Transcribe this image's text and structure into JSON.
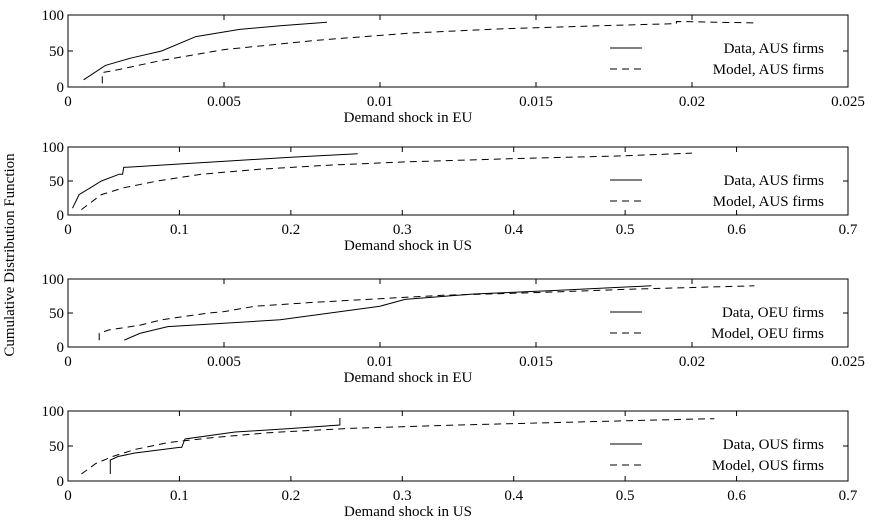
{
  "figure": {
    "shared_ylabel": "Cumulative Distribution Function"
  },
  "chart_data": [
    {
      "type": "line",
      "xlabel": "Demand shock in EU",
      "ylabel": "",
      "xlim": [
        0,
        0.025
      ],
      "ylim": [
        0,
        100
      ],
      "xticks": [
        0,
        0.005,
        0.01,
        0.015,
        0.02,
        0.025
      ],
      "xtick_labels": [
        "0",
        "0.005",
        "0.01",
        "0.015",
        "0.02",
        "0.025"
      ],
      "yticks": [
        0,
        50,
        100
      ],
      "ytick_labels": [
        "0",
        "50",
        "100"
      ],
      "grid": false,
      "legend_position": "right",
      "series": [
        {
          "name": "Data, AUS firms",
          "style": "solid",
          "x": [
            0.0005,
            0.0012,
            0.002,
            0.003,
            0.0041,
            0.0055,
            0.0068,
            0.0083
          ],
          "y": [
            10,
            30,
            40,
            50,
            70,
            80,
            85,
            90
          ]
        },
        {
          "name": "Model, AUS firms",
          "style": "dashed",
          "x": [
            0.0011,
            0.0011,
            0.0015,
            0.003,
            0.005,
            0.008,
            0.011,
            0.014,
            0.017,
            0.0195,
            0.0195,
            0.022
          ],
          "y": [
            5,
            20,
            23,
            37,
            52,
            65,
            75,
            81,
            85,
            88,
            91,
            89
          ]
        }
      ]
    },
    {
      "type": "line",
      "xlabel": "Demand shock in US",
      "ylabel": "",
      "xlim": [
        0,
        0.7
      ],
      "ylim": [
        0,
        100
      ],
      "xticks": [
        0,
        0.1,
        0.2,
        0.3,
        0.4,
        0.5,
        0.6,
        0.7
      ],
      "xtick_labels": [
        "0",
        "0.1",
        "0.2",
        "0.3",
        "0.4",
        "0.5",
        "0.6",
        "0.7"
      ],
      "yticks": [
        0,
        50,
        100
      ],
      "ytick_labels": [
        "0",
        "50",
        "100"
      ],
      "grid": false,
      "legend_position": "right",
      "series": [
        {
          "name": "Data, AUS firms",
          "style": "solid",
          "x": [
            0.004,
            0.01,
            0.02,
            0.03,
            0.046,
            0.049,
            0.05,
            0.1,
            0.15,
            0.2,
            0.26
          ],
          "y": [
            10,
            30,
            40,
            50,
            60,
            60,
            70,
            75,
            80,
            85,
            90
          ]
        },
        {
          "name": "Model, AUS firms",
          "style": "dashed",
          "x": [
            0.012,
            0.03,
            0.05,
            0.08,
            0.12,
            0.17,
            0.23,
            0.3,
            0.4,
            0.5,
            0.56
          ],
          "y": [
            8,
            30,
            40,
            50,
            60,
            67,
            73,
            78,
            83,
            87,
            91
          ]
        }
      ]
    },
    {
      "type": "line",
      "xlabel": "Demand shock in EU",
      "ylabel": "",
      "xlim": [
        0,
        0.025
      ],
      "ylim": [
        0,
        100
      ],
      "xticks": [
        0,
        0.005,
        0.01,
        0.015,
        0.02,
        0.025
      ],
      "xtick_labels": [
        "0",
        "0.005",
        "0.01",
        "0.015",
        "0.02",
        "0.025"
      ],
      "yticks": [
        0,
        50,
        100
      ],
      "ytick_labels": [
        "0",
        "50",
        "100"
      ],
      "grid": false,
      "legend_position": "right",
      "series": [
        {
          "name": "Data, OEU firms",
          "style": "solid",
          "x": [
            0.0018,
            0.0023,
            0.0032,
            0.0068,
            0.01,
            0.0108,
            0.013,
            0.0155,
            0.0187
          ],
          "y": [
            10,
            20,
            30,
            40,
            60,
            70,
            78,
            83,
            90
          ]
        },
        {
          "name": "Model, OEU firms",
          "style": "dashed",
          "x": [
            0.001,
            0.001,
            0.0013,
            0.0023,
            0.003,
            0.0045,
            0.005,
            0.006,
            0.008,
            0.01,
            0.012,
            0.015,
            0.018,
            0.022
          ],
          "y": [
            10,
            20,
            25,
            32,
            40,
            50,
            52,
            60,
            66,
            71,
            76,
            80,
            85,
            90
          ]
        }
      ]
    },
    {
      "type": "line",
      "xlabel": "Demand shock in US",
      "ylabel": "",
      "xlim": [
        0,
        0.7
      ],
      "ylim": [
        0,
        100
      ],
      "xticks": [
        0,
        0.1,
        0.2,
        0.3,
        0.4,
        0.5,
        0.6,
        0.7
      ],
      "xtick_labels": [
        "0",
        "0.1",
        "0.2",
        "0.3",
        "0.4",
        "0.5",
        "0.6",
        "0.7"
      ],
      "yticks": [
        0,
        50,
        100
      ],
      "ytick_labels": [
        "0",
        "50",
        "100"
      ],
      "grid": false,
      "legend_position": "right",
      "series": [
        {
          "name": "Data, OUS firms",
          "style": "solid",
          "x": [
            0.038,
            0.038,
            0.045,
            0.06,
            0.1,
            0.102,
            0.105,
            0.15,
            0.2,
            0.244,
            0.244
          ],
          "y": [
            10,
            30,
            35,
            40,
            48,
            48,
            60,
            70,
            75,
            80,
            90
          ]
        },
        {
          "name": "Model, OUS firms",
          "style": "dashed",
          "x": [
            0.012,
            0.025,
            0.04,
            0.06,
            0.09,
            0.13,
            0.18,
            0.25,
            0.35,
            0.45,
            0.55,
            0.58
          ],
          "y": [
            10,
            25,
            35,
            45,
            55,
            62,
            69,
            75,
            80,
            84,
            88,
            89
          ]
        }
      ]
    }
  ]
}
